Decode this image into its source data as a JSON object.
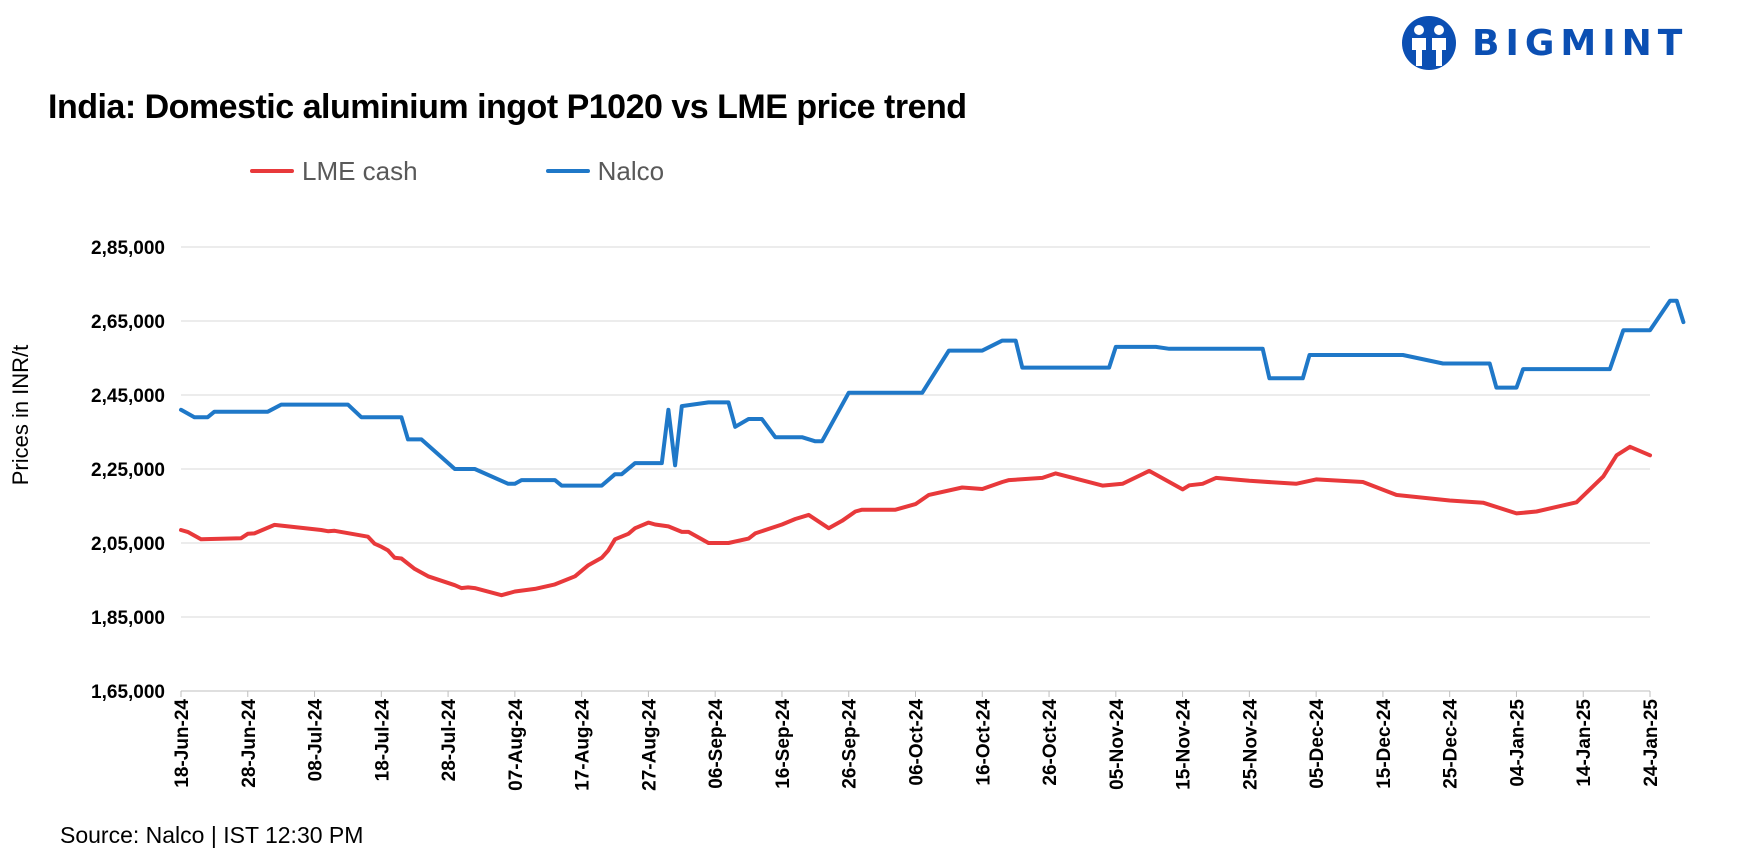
{
  "brand": {
    "name": "BIGMINT"
  },
  "footer": {
    "source": "Source: Nalco | IST 12:30 PM"
  },
  "chart_data": {
    "type": "line",
    "title": "India: Domestic aluminium ingot P1020 vs LME price trend",
    "xlabel": "",
    "ylabel": "Prices in INR/t",
    "ylim": [
      165000,
      285000
    ],
    "yticks": [
      165000,
      185000,
      205000,
      225000,
      245000,
      265000,
      285000
    ],
    "ytick_labels": [
      "1,65,000",
      "1,85,000",
      "2,05,000",
      "2,25,000",
      "2,45,000",
      "2,65,000",
      "2,85,000"
    ],
    "xlim": [
      "2024-06-18",
      "2025-01-24"
    ],
    "xtick_dates": [
      "2024-06-18",
      "2024-06-28",
      "2024-07-08",
      "2024-07-18",
      "2024-07-28",
      "2024-08-07",
      "2024-08-17",
      "2024-08-27",
      "2024-09-06",
      "2024-09-16",
      "2024-09-26",
      "2024-10-06",
      "2024-10-16",
      "2024-10-26",
      "2024-11-05",
      "2024-11-15",
      "2024-11-25",
      "2024-12-05",
      "2024-12-15",
      "2024-12-25",
      "2025-01-04",
      "2025-01-14",
      "2025-01-24"
    ],
    "xtick_labels": [
      "18-Jun-24",
      "28-Jun-24",
      "08-Jul-24",
      "18-Jul-24",
      "28-Jul-24",
      "07-Aug-24",
      "17-Aug-24",
      "27-Aug-24",
      "06-Sep-24",
      "16-Sep-24",
      "26-Sep-24",
      "06-Oct-24",
      "16-Oct-24",
      "26-Oct-24",
      "05-Nov-24",
      "15-Nov-24",
      "25-Nov-24",
      "05-Dec-24",
      "15-Dec-24",
      "25-Dec-24",
      "04-Jan-25",
      "14-Jan-25",
      "24-Jan-25"
    ],
    "grid": "horizontal",
    "legend": "top",
    "series": [
      {
        "name": "LME cash",
        "color": "#e8393b",
        "points": [
          [
            "2024-06-18",
            208500
          ],
          [
            "2024-06-19",
            208000
          ],
          [
            "2024-06-21",
            206000
          ],
          [
            "2024-06-27",
            206300
          ],
          [
            "2024-06-28",
            207500
          ],
          [
            "2024-06-29",
            207600
          ],
          [
            "2024-07-02",
            209900
          ],
          [
            "2024-07-09",
            208500
          ],
          [
            "2024-07-10",
            208200
          ],
          [
            "2024-07-11",
            208300
          ],
          [
            "2024-07-16",
            206700
          ],
          [
            "2024-07-17",
            204800
          ],
          [
            "2024-07-18",
            204000
          ],
          [
            "2024-07-19",
            203000
          ],
          [
            "2024-07-20",
            201000
          ],
          [
            "2024-07-21",
            200800
          ],
          [
            "2024-07-23",
            198000
          ],
          [
            "2024-07-25",
            196000
          ],
          [
            "2024-07-29",
            193600
          ],
          [
            "2024-07-30",
            192800
          ],
          [
            "2024-07-31",
            193000
          ],
          [
            "2024-08-01",
            192800
          ],
          [
            "2024-08-05",
            190900
          ],
          [
            "2024-08-07",
            191900
          ],
          [
            "2024-08-10",
            192600
          ],
          [
            "2024-08-13",
            193800
          ],
          [
            "2024-08-16",
            196000
          ],
          [
            "2024-08-18",
            199000
          ],
          [
            "2024-08-20",
            201000
          ],
          [
            "2024-08-21",
            203000
          ],
          [
            "2024-08-22",
            206000
          ],
          [
            "2024-08-24",
            207500
          ],
          [
            "2024-08-25",
            209000
          ],
          [
            "2024-08-27",
            210500
          ],
          [
            "2024-08-28",
            210000
          ],
          [
            "2024-08-30",
            209500
          ],
          [
            "2024-09-01",
            208000
          ],
          [
            "2024-09-02",
            208000
          ],
          [
            "2024-09-04",
            206000
          ],
          [
            "2024-09-05",
            205000
          ],
          [
            "2024-09-08",
            205000
          ],
          [
            "2024-09-11",
            206200
          ],
          [
            "2024-09-12",
            207600
          ],
          [
            "2024-09-16",
            210000
          ],
          [
            "2024-09-18",
            211500
          ],
          [
            "2024-09-20",
            212600
          ],
          [
            "2024-09-23",
            209000
          ],
          [
            "2024-09-25",
            211000
          ],
          [
            "2024-09-27",
            213500
          ],
          [
            "2024-09-28",
            214000
          ],
          [
            "2024-10-03",
            214000
          ],
          [
            "2024-10-06",
            215500
          ],
          [
            "2024-10-08",
            218000
          ],
          [
            "2024-10-13",
            220000
          ],
          [
            "2024-10-16",
            219600
          ],
          [
            "2024-10-19",
            221500
          ],
          [
            "2024-10-20",
            222000
          ],
          [
            "2024-10-25",
            222600
          ],
          [
            "2024-10-27",
            223800
          ],
          [
            "2024-11-03",
            220500
          ],
          [
            "2024-11-06",
            221000
          ],
          [
            "2024-11-10",
            224500
          ],
          [
            "2024-11-15",
            219500
          ],
          [
            "2024-11-16",
            220600
          ],
          [
            "2024-11-18",
            221000
          ],
          [
            "2024-11-20",
            222600
          ],
          [
            "2024-11-25",
            221800
          ],
          [
            "2024-12-02",
            221000
          ],
          [
            "2024-12-05",
            222200
          ],
          [
            "2024-12-12",
            221500
          ],
          [
            "2024-12-17",
            218000
          ],
          [
            "2024-12-25",
            216500
          ],
          [
            "2024-12-30",
            215900
          ],
          [
            "2025-01-04",
            213000
          ],
          [
            "2025-01-07",
            213500
          ],
          [
            "2025-01-13",
            216000
          ],
          [
            "2025-01-17",
            223000
          ],
          [
            "2025-01-19",
            228700
          ],
          [
            "2025-01-21",
            231000
          ],
          [
            "2025-01-24",
            228700
          ]
        ]
      },
      {
        "name": "Nalco",
        "color": "#1f78c8",
        "points": [
          [
            "2024-06-18",
            241000
          ],
          [
            "2024-06-20",
            239000
          ],
          [
            "2024-06-22",
            239000
          ],
          [
            "2024-06-23",
            240500
          ],
          [
            "2024-07-01",
            240500
          ],
          [
            "2024-07-03",
            242400
          ],
          [
            "2024-07-13",
            242400
          ],
          [
            "2024-07-15",
            239000
          ],
          [
            "2024-07-21",
            239000
          ],
          [
            "2024-07-22",
            233000
          ],
          [
            "2024-07-24",
            233000
          ],
          [
            "2024-07-29",
            225000
          ],
          [
            "2024-08-01",
            225000
          ],
          [
            "2024-08-06",
            221000
          ],
          [
            "2024-08-07",
            221000
          ],
          [
            "2024-08-08",
            222000
          ],
          [
            "2024-08-13",
            222000
          ],
          [
            "2024-08-14",
            220500
          ],
          [
            "2024-08-20",
            220500
          ],
          [
            "2024-08-22",
            223600
          ],
          [
            "2024-08-23",
            223600
          ],
          [
            "2024-08-25",
            226600
          ],
          [
            "2024-08-29",
            226600
          ],
          [
            "2024-08-30",
            241000
          ],
          [
            "2024-08-31",
            226000
          ],
          [
            "2024-09-01",
            242000
          ],
          [
            "2024-09-05",
            243000
          ],
          [
            "2024-09-08",
            243000
          ],
          [
            "2024-09-09",
            236400
          ],
          [
            "2024-09-11",
            238500
          ],
          [
            "2024-09-13",
            238500
          ],
          [
            "2024-09-15",
            233600
          ],
          [
            "2024-09-19",
            233600
          ],
          [
            "2024-09-21",
            232500
          ],
          [
            "2024-09-22",
            232500
          ],
          [
            "2024-09-26",
            245600
          ],
          [
            "2024-10-07",
            245600
          ],
          [
            "2024-10-11",
            257000
          ],
          [
            "2024-10-16",
            257000
          ],
          [
            "2024-10-19",
            259700
          ],
          [
            "2024-10-21",
            259700
          ],
          [
            "2024-10-22",
            252400
          ],
          [
            "2024-11-04",
            252400
          ],
          [
            "2024-11-05",
            258000
          ],
          [
            "2024-11-11",
            258000
          ],
          [
            "2024-11-13",
            257500
          ],
          [
            "2024-11-27",
            257500
          ],
          [
            "2024-11-28",
            249500
          ],
          [
            "2024-12-03",
            249500
          ],
          [
            "2024-12-04",
            255800
          ],
          [
            "2024-12-18",
            255800
          ],
          [
            "2024-12-24",
            253500
          ],
          [
            "2024-12-31",
            253500
          ],
          [
            "2025-01-01",
            247000
          ],
          [
            "2025-01-04",
            247000
          ],
          [
            "2025-01-05",
            252000
          ],
          [
            "2025-01-18",
            252000
          ],
          [
            "2025-01-20",
            262500
          ],
          [
            "2025-01-24",
            262500
          ],
          [
            "2025-01-27",
            270500
          ],
          [
            "2025-01-28",
            270500
          ],
          [
            "2025-01-29",
            264700
          ]
        ]
      }
    ]
  }
}
